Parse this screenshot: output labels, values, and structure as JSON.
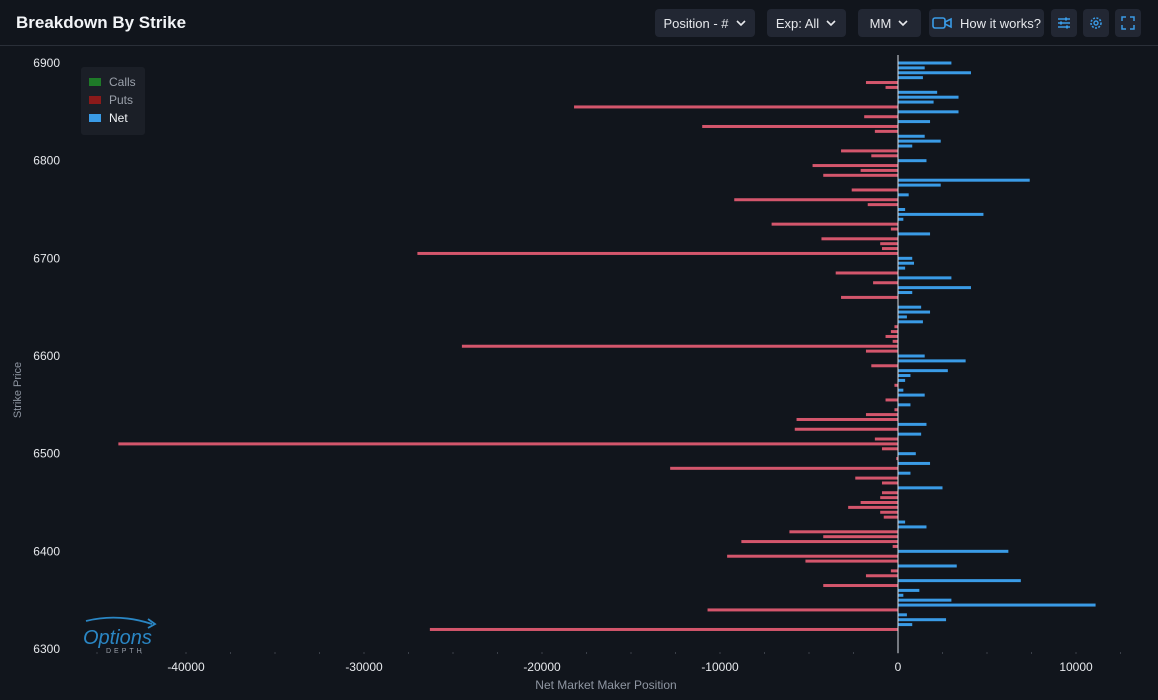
{
  "header": {
    "title": "Breakdown By Strike",
    "position_label": "Position - #",
    "exp_label": "Exp: All",
    "mm_label": "MM",
    "how_label": "How it works?"
  },
  "logo": {
    "word": "Options",
    "sub": "DEPTH"
  },
  "colors": {
    "calls": "#1e7a28",
    "puts": "#8b1a1a",
    "net_positive": "#3a9be6",
    "net_negative": "#d4566c"
  },
  "chart_data": {
    "type": "bar",
    "orientation": "horizontal",
    "title": "",
    "xlabel": "Net Market Maker Position",
    "ylabel": "Strike Price",
    "xlim": [
      -46000,
      13000
    ],
    "ylim": [
      6295,
      6905
    ],
    "xticks": [
      -40000,
      -30000,
      -20000,
      -10000,
      0,
      10000
    ],
    "yticks": [
      6300,
      6400,
      6500,
      6600,
      6700,
      6800,
      6900
    ],
    "grid": false,
    "legend": {
      "position": "top-left",
      "entries": [
        "Calls",
        "Puts",
        "Net"
      ]
    },
    "series": [
      {
        "name": "Net",
        "points": [
          [
            6900,
            3000
          ],
          [
            6895,
            1500
          ],
          [
            6890,
            4100
          ],
          [
            6885,
            1400
          ],
          [
            6880,
            -1800
          ],
          [
            6875,
            -700
          ],
          [
            6870,
            2200
          ],
          [
            6865,
            3400
          ],
          [
            6860,
            2000
          ],
          [
            6855,
            -18200
          ],
          [
            6850,
            3400
          ],
          [
            6845,
            -1900
          ],
          [
            6840,
            1800
          ],
          [
            6835,
            -11000
          ],
          [
            6830,
            -1300
          ],
          [
            6825,
            1500
          ],
          [
            6820,
            2400
          ],
          [
            6815,
            800
          ],
          [
            6810,
            -3200
          ],
          [
            6805,
            -1500
          ],
          [
            6800,
            1600
          ],
          [
            6795,
            -4800
          ],
          [
            6790,
            -2100
          ],
          [
            6785,
            -4200
          ],
          [
            6780,
            7400
          ],
          [
            6775,
            2400
          ],
          [
            6770,
            -2600
          ],
          [
            6765,
            600
          ],
          [
            6760,
            -9200
          ],
          [
            6755,
            -1700
          ],
          [
            6750,
            400
          ],
          [
            6745,
            4800
          ],
          [
            6740,
            300
          ],
          [
            6735,
            -7100
          ],
          [
            6730,
            -400
          ],
          [
            6725,
            1800
          ],
          [
            6720,
            -4300
          ],
          [
            6715,
            -1000
          ],
          [
            6710,
            -900
          ],
          [
            6705,
            -27000
          ],
          [
            6700,
            800
          ],
          [
            6695,
            900
          ],
          [
            6690,
            400
          ],
          [
            6685,
            -3500
          ],
          [
            6680,
            3000
          ],
          [
            6675,
            -1400
          ],
          [
            6670,
            4100
          ],
          [
            6665,
            800
          ],
          [
            6660,
            -3200
          ],
          [
            6650,
            1300
          ],
          [
            6645,
            1800
          ],
          [
            6640,
            500
          ],
          [
            6635,
            1400
          ],
          [
            6630,
            -200
          ],
          [
            6625,
            -400
          ],
          [
            6620,
            -700
          ],
          [
            6615,
            -300
          ],
          [
            6610,
            -24500
          ],
          [
            6605,
            -1800
          ],
          [
            6600,
            1500
          ],
          [
            6595,
            3800
          ],
          [
            6590,
            -1500
          ],
          [
            6585,
            2800
          ],
          [
            6580,
            700
          ],
          [
            6575,
            400
          ],
          [
            6570,
            -200
          ],
          [
            6565,
            300
          ],
          [
            6560,
            1500
          ],
          [
            6555,
            -700
          ],
          [
            6550,
            700
          ],
          [
            6545,
            -200
          ],
          [
            6540,
            -1800
          ],
          [
            6535,
            -5700
          ],
          [
            6530,
            1600
          ],
          [
            6525,
            -5800
          ],
          [
            6520,
            1300
          ],
          [
            6515,
            -1300
          ],
          [
            6510,
            -43800
          ],
          [
            6505,
            -900
          ],
          [
            6500,
            1000
          ],
          [
            6495,
            -100
          ],
          [
            6490,
            1800
          ],
          [
            6485,
            -12800
          ],
          [
            6480,
            700
          ],
          [
            6475,
            -2400
          ],
          [
            6470,
            -900
          ],
          [
            6465,
            2500
          ],
          [
            6460,
            -900
          ],
          [
            6455,
            -1000
          ],
          [
            6450,
            -2100
          ],
          [
            6445,
            -2800
          ],
          [
            6440,
            -1000
          ],
          [
            6435,
            -800
          ],
          [
            6430,
            400
          ],
          [
            6425,
            1600
          ],
          [
            6420,
            -6100
          ],
          [
            6415,
            -4200
          ],
          [
            6410,
            -8800
          ],
          [
            6405,
            -300
          ],
          [
            6400,
            6200
          ],
          [
            6395,
            -9600
          ],
          [
            6390,
            -5200
          ],
          [
            6385,
            3300
          ],
          [
            6380,
            -400
          ],
          [
            6375,
            -1800
          ],
          [
            6370,
            6900
          ],
          [
            6365,
            -4200
          ],
          [
            6360,
            1200
          ],
          [
            6355,
            300
          ],
          [
            6350,
            3000
          ],
          [
            6345,
            11100
          ],
          [
            6340,
            -10700
          ],
          [
            6335,
            500
          ],
          [
            6330,
            2700
          ],
          [
            6325,
            800
          ],
          [
            6320,
            -26300
          ]
        ]
      }
    ]
  }
}
